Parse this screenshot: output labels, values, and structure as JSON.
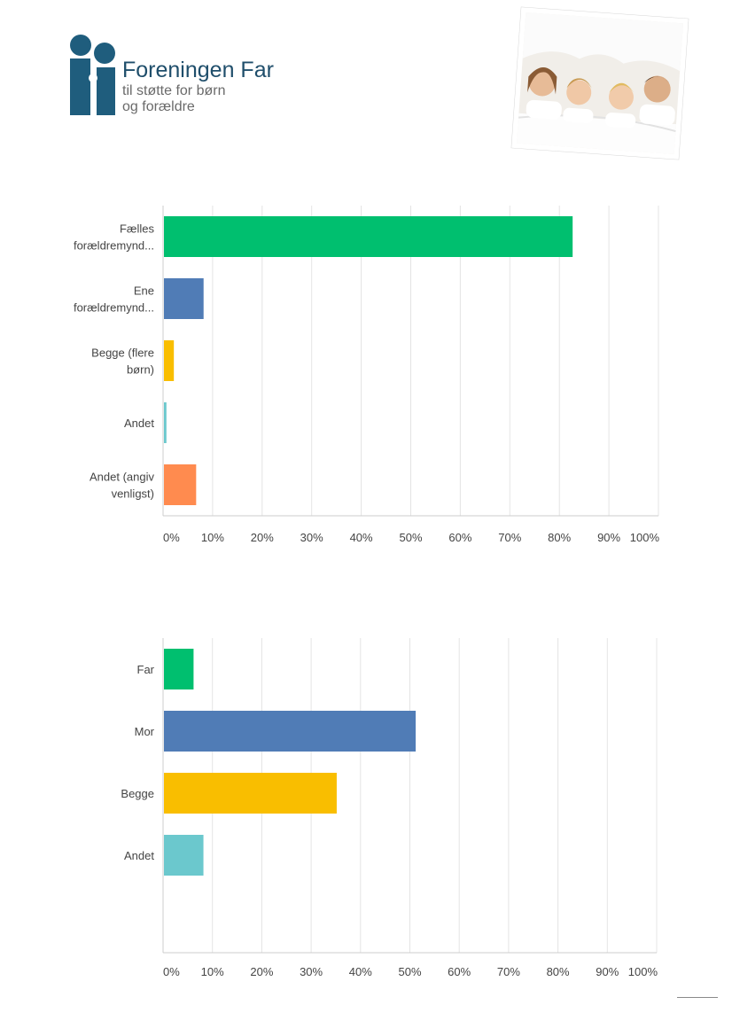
{
  "header": {
    "logo_name": "Foreningen Far",
    "logo_sub_1": "til støtte for børn",
    "logo_sub_2": "og forældre",
    "logo_color": "#1f5d7d"
  },
  "chart_data": [
    {
      "type": "bar",
      "orientation": "horizontal",
      "categories": [
        [
          "Fælles",
          "forældremynd..."
        ],
        [
          "Ene",
          "forældremynd..."
        ],
        [
          "Begge (flere",
          "børn)"
        ],
        [
          "Andet"
        ],
        [
          "Andet (angiv",
          "venligst)"
        ]
      ],
      "values": [
        82.5,
        8,
        2,
        0.5,
        6.5
      ],
      "colors": [
        "#00bf6f",
        "#507cb6",
        "#f9be00",
        "#6bc8cd",
        "#ff8b4f"
      ],
      "xlim": [
        0,
        100
      ],
      "xticks": [
        "0%",
        "10%",
        "20%",
        "30%",
        "40%",
        "50%",
        "60%",
        "70%",
        "80%",
        "90%",
        "100%"
      ],
      "grid": true
    },
    {
      "type": "bar",
      "orientation": "horizontal",
      "categories": [
        [
          "Far"
        ],
        [
          "Mor"
        ],
        [
          "Begge"
        ],
        [
          "Andet"
        ],
        [
          ""
        ]
      ],
      "values": [
        6,
        51,
        35,
        8,
        0
      ],
      "colors": [
        "#00bf6f",
        "#507cb6",
        "#f9be00",
        "#6bc8cd",
        "#ffffff"
      ],
      "xlim": [
        0,
        100
      ],
      "xticks": [
        "0%",
        "10%",
        "20%",
        "30%",
        "40%",
        "50%",
        "60%",
        "70%",
        "80%",
        "90%",
        "100%"
      ],
      "grid": true
    }
  ]
}
